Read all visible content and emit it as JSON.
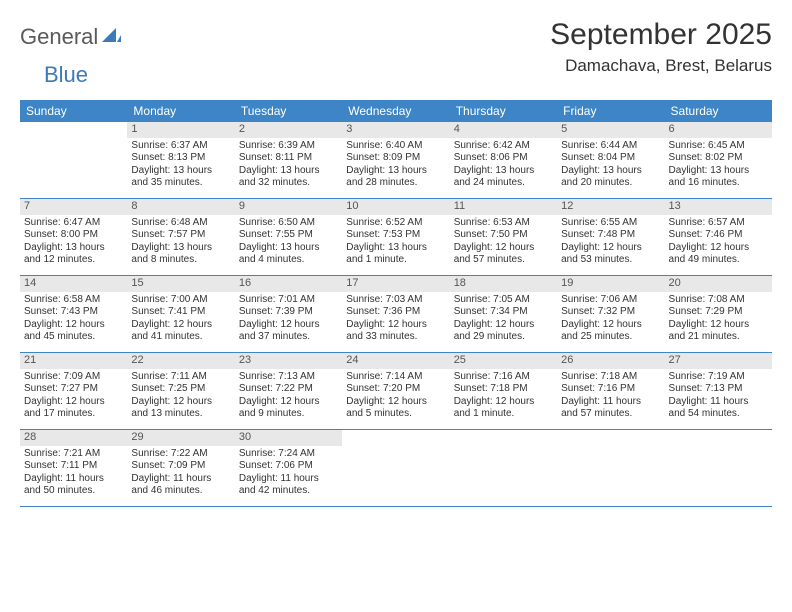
{
  "logo": {
    "word1": "General",
    "word2": "Blue"
  },
  "title": "September 2025",
  "location": "Damachava, Brest, Belarus",
  "colors": {
    "header_bg": "#3d85c6",
    "header_text": "#ffffff",
    "daynum_bg": "#e8e8e8",
    "text": "#333333",
    "logo_gray": "#5a5a5a",
    "logo_blue": "#3d7ab8",
    "border": "#3d85c6"
  },
  "day_headers": [
    "Sunday",
    "Monday",
    "Tuesday",
    "Wednesday",
    "Thursday",
    "Friday",
    "Saturday"
  ],
  "weeks": [
    [
      null,
      {
        "n": "1",
        "sr": "Sunrise: 6:37 AM",
        "ss": "Sunset: 8:13 PM",
        "d1": "Daylight: 13 hours",
        "d2": "and 35 minutes."
      },
      {
        "n": "2",
        "sr": "Sunrise: 6:39 AM",
        "ss": "Sunset: 8:11 PM",
        "d1": "Daylight: 13 hours",
        "d2": "and 32 minutes."
      },
      {
        "n": "3",
        "sr": "Sunrise: 6:40 AM",
        "ss": "Sunset: 8:09 PM",
        "d1": "Daylight: 13 hours",
        "d2": "and 28 minutes."
      },
      {
        "n": "4",
        "sr": "Sunrise: 6:42 AM",
        "ss": "Sunset: 8:06 PM",
        "d1": "Daylight: 13 hours",
        "d2": "and 24 minutes."
      },
      {
        "n": "5",
        "sr": "Sunrise: 6:44 AM",
        "ss": "Sunset: 8:04 PM",
        "d1": "Daylight: 13 hours",
        "d2": "and 20 minutes."
      },
      {
        "n": "6",
        "sr": "Sunrise: 6:45 AM",
        "ss": "Sunset: 8:02 PM",
        "d1": "Daylight: 13 hours",
        "d2": "and 16 minutes."
      }
    ],
    [
      {
        "n": "7",
        "sr": "Sunrise: 6:47 AM",
        "ss": "Sunset: 8:00 PM",
        "d1": "Daylight: 13 hours",
        "d2": "and 12 minutes."
      },
      {
        "n": "8",
        "sr": "Sunrise: 6:48 AM",
        "ss": "Sunset: 7:57 PM",
        "d1": "Daylight: 13 hours",
        "d2": "and 8 minutes."
      },
      {
        "n": "9",
        "sr": "Sunrise: 6:50 AM",
        "ss": "Sunset: 7:55 PM",
        "d1": "Daylight: 13 hours",
        "d2": "and 4 minutes."
      },
      {
        "n": "10",
        "sr": "Sunrise: 6:52 AM",
        "ss": "Sunset: 7:53 PM",
        "d1": "Daylight: 13 hours",
        "d2": "and 1 minute."
      },
      {
        "n": "11",
        "sr": "Sunrise: 6:53 AM",
        "ss": "Sunset: 7:50 PM",
        "d1": "Daylight: 12 hours",
        "d2": "and 57 minutes."
      },
      {
        "n": "12",
        "sr": "Sunrise: 6:55 AM",
        "ss": "Sunset: 7:48 PM",
        "d1": "Daylight: 12 hours",
        "d2": "and 53 minutes."
      },
      {
        "n": "13",
        "sr": "Sunrise: 6:57 AM",
        "ss": "Sunset: 7:46 PM",
        "d1": "Daylight: 12 hours",
        "d2": "and 49 minutes."
      }
    ],
    [
      {
        "n": "14",
        "sr": "Sunrise: 6:58 AM",
        "ss": "Sunset: 7:43 PM",
        "d1": "Daylight: 12 hours",
        "d2": "and 45 minutes."
      },
      {
        "n": "15",
        "sr": "Sunrise: 7:00 AM",
        "ss": "Sunset: 7:41 PM",
        "d1": "Daylight: 12 hours",
        "d2": "and 41 minutes."
      },
      {
        "n": "16",
        "sr": "Sunrise: 7:01 AM",
        "ss": "Sunset: 7:39 PM",
        "d1": "Daylight: 12 hours",
        "d2": "and 37 minutes."
      },
      {
        "n": "17",
        "sr": "Sunrise: 7:03 AM",
        "ss": "Sunset: 7:36 PM",
        "d1": "Daylight: 12 hours",
        "d2": "and 33 minutes."
      },
      {
        "n": "18",
        "sr": "Sunrise: 7:05 AM",
        "ss": "Sunset: 7:34 PM",
        "d1": "Daylight: 12 hours",
        "d2": "and 29 minutes."
      },
      {
        "n": "19",
        "sr": "Sunrise: 7:06 AM",
        "ss": "Sunset: 7:32 PM",
        "d1": "Daylight: 12 hours",
        "d2": "and 25 minutes."
      },
      {
        "n": "20",
        "sr": "Sunrise: 7:08 AM",
        "ss": "Sunset: 7:29 PM",
        "d1": "Daylight: 12 hours",
        "d2": "and 21 minutes."
      }
    ],
    [
      {
        "n": "21",
        "sr": "Sunrise: 7:09 AM",
        "ss": "Sunset: 7:27 PM",
        "d1": "Daylight: 12 hours",
        "d2": "and 17 minutes."
      },
      {
        "n": "22",
        "sr": "Sunrise: 7:11 AM",
        "ss": "Sunset: 7:25 PM",
        "d1": "Daylight: 12 hours",
        "d2": "and 13 minutes."
      },
      {
        "n": "23",
        "sr": "Sunrise: 7:13 AM",
        "ss": "Sunset: 7:22 PM",
        "d1": "Daylight: 12 hours",
        "d2": "and 9 minutes."
      },
      {
        "n": "24",
        "sr": "Sunrise: 7:14 AM",
        "ss": "Sunset: 7:20 PM",
        "d1": "Daylight: 12 hours",
        "d2": "and 5 minutes."
      },
      {
        "n": "25",
        "sr": "Sunrise: 7:16 AM",
        "ss": "Sunset: 7:18 PM",
        "d1": "Daylight: 12 hours",
        "d2": "and 1 minute."
      },
      {
        "n": "26",
        "sr": "Sunrise: 7:18 AM",
        "ss": "Sunset: 7:16 PM",
        "d1": "Daylight: 11 hours",
        "d2": "and 57 minutes."
      },
      {
        "n": "27",
        "sr": "Sunrise: 7:19 AM",
        "ss": "Sunset: 7:13 PM",
        "d1": "Daylight: 11 hours",
        "d2": "and 54 minutes."
      }
    ],
    [
      {
        "n": "28",
        "sr": "Sunrise: 7:21 AM",
        "ss": "Sunset: 7:11 PM",
        "d1": "Daylight: 11 hours",
        "d2": "and 50 minutes."
      },
      {
        "n": "29",
        "sr": "Sunrise: 7:22 AM",
        "ss": "Sunset: 7:09 PM",
        "d1": "Daylight: 11 hours",
        "d2": "and 46 minutes."
      },
      {
        "n": "30",
        "sr": "Sunrise: 7:24 AM",
        "ss": "Sunset: 7:06 PM",
        "d1": "Daylight: 11 hours",
        "d2": "and 42 minutes."
      },
      null,
      null,
      null,
      null
    ]
  ]
}
